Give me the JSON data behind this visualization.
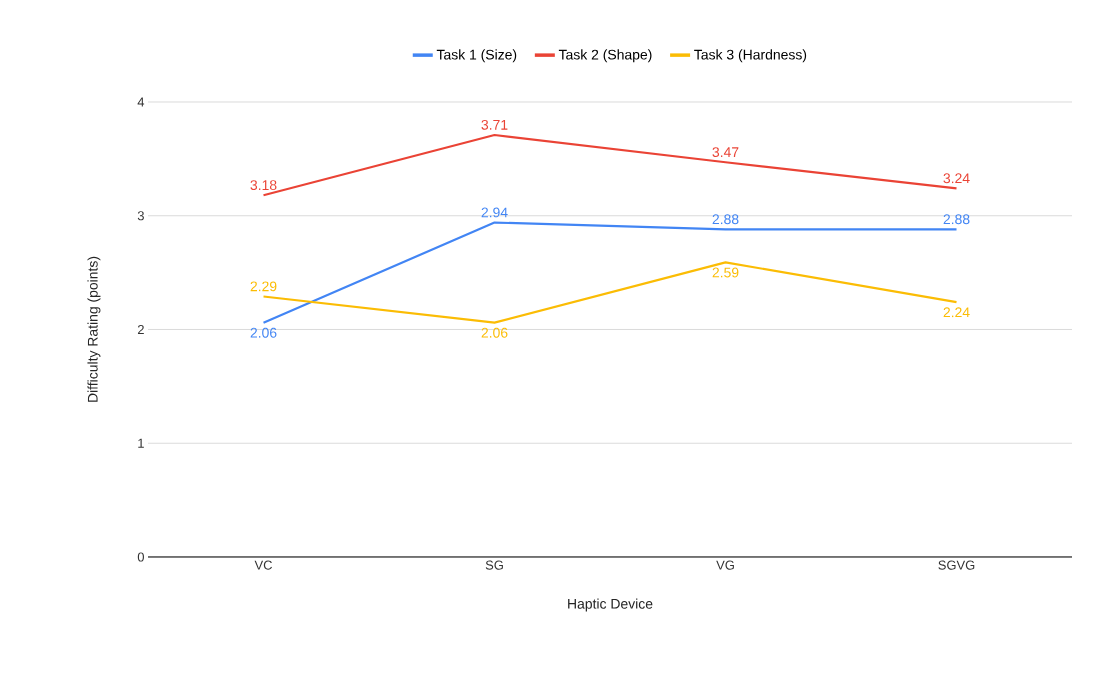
{
  "chart_data": {
    "type": "line",
    "xlabel": "Haptic Device",
    "ylabel": "Difficulty Rating (points)",
    "categories": [
      "VC",
      "SG",
      "VG",
      "SGVG"
    ],
    "series": [
      {
        "name": "Task 1 (Size)",
        "color": "#4285f4",
        "values": [
          2.06,
          2.94,
          2.88,
          2.88
        ]
      },
      {
        "name": "Task 2 (Shape)",
        "color": "#ea4335",
        "values": [
          3.18,
          3.71,
          3.47,
          3.24
        ]
      },
      {
        "name": "Task 3 (Hardness)",
        "color": "#fbbc04",
        "values": [
          2.29,
          2.06,
          2.59,
          2.24
        ]
      }
    ],
    "ylim": [
      0,
      4
    ],
    "yticks": [
      0,
      1,
      2,
      3,
      4
    ],
    "grid": "y",
    "legend": "top",
    "data_labels": true,
    "marker": "none",
    "line_style": "solid"
  }
}
